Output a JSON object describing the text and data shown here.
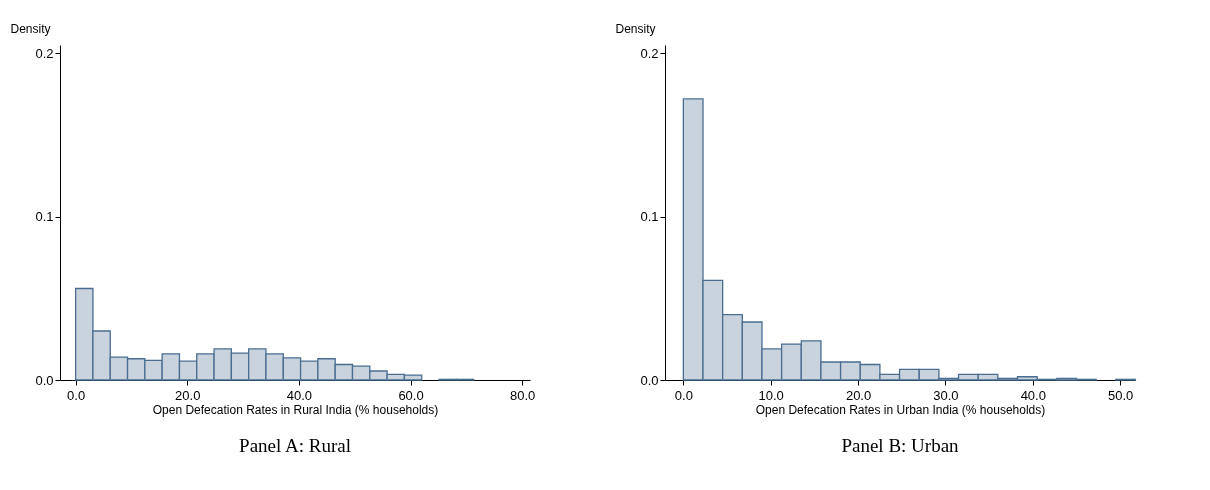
{
  "chart_data": [
    {
      "type": "histogram",
      "title": "Panel A: Rural",
      "xlabel": "Open Defecation Rates in Rural India (% households)",
      "ylabel": "Density",
      "color": "#c8d3de",
      "bins": [
        0,
        3.1,
        6.2,
        9.3,
        12.4,
        15.5,
        18.6,
        21.7,
        24.8,
        27.9,
        31,
        34.1,
        37.2,
        40.3,
        43.4,
        46.5,
        49.6,
        52.7,
        55.8,
        58.9,
        62,
        65.1,
        68.2,
        71.3
      ],
      "values": [
        0.056,
        0.03,
        0.014,
        0.013,
        0.012,
        0.016,
        0.0115,
        0.016,
        0.019,
        0.0165,
        0.019,
        0.016,
        0.0135,
        0.0115,
        0.013,
        0.0095,
        0.0085,
        0.0055,
        0.0035,
        0.003,
        null,
        0.0004,
        0.0004
      ],
      "xlim": [
        -2.8,
        81.4
      ],
      "xticks": [
        {
          "value": 0,
          "label": "0.0"
        },
        {
          "value": 20,
          "label": "20.0"
        },
        {
          "value": 40,
          "label": "40.0"
        },
        {
          "value": 60,
          "label": "60.0"
        },
        {
          "value": 80,
          "label": "80.0"
        }
      ],
      "ylim": [
        0,
        0.205
      ],
      "yticks": [
        {
          "value": 0,
          "label": "0.0"
        },
        {
          "value": 0.1,
          "label": "0.1"
        },
        {
          "value": 0.2,
          "label": "0.2"
        }
      ],
      "grid": false
    },
    {
      "type": "histogram",
      "title": "Panel B: Urban",
      "xlabel": "Open Defecation Rates in Urban India (% households)",
      "ylabel": "Density",
      "color": "#c8d3de",
      "bins": [
        0,
        2.25,
        4.5,
        6.75,
        9,
        11.25,
        13.5,
        15.75,
        18,
        20.25,
        22.5,
        24.75,
        27,
        29.25,
        31.5,
        33.75,
        36,
        38.25,
        40.5,
        42.75,
        45,
        47.25,
        49.5,
        51.75
      ],
      "values": [
        0.172,
        0.061,
        0.04,
        0.0355,
        0.019,
        0.022,
        0.024,
        0.011,
        0.011,
        0.0095,
        0.0035,
        0.0065,
        0.0065,
        0.001,
        0.0035,
        0.0035,
        0.001,
        0.002,
        0.0004,
        0.001,
        0.0004,
        null,
        0.0004
      ],
      "xlim": [
        -2.1,
        51.7
      ],
      "xticks": [
        {
          "value": 0,
          "label": "0.0"
        },
        {
          "value": 10,
          "label": "10.0"
        },
        {
          "value": 20,
          "label": "20.0"
        },
        {
          "value": 30,
          "label": "30.0"
        },
        {
          "value": 40,
          "label": "40.0"
        },
        {
          "value": 50,
          "label": "50.0"
        }
      ],
      "ylim": [
        0,
        0.205
      ],
      "yticks": [
        {
          "value": 0,
          "label": "0.0"
        },
        {
          "value": 0.1,
          "label": "0.1"
        },
        {
          "value": 0.2,
          "label": "0.2"
        }
      ],
      "grid": false
    }
  ]
}
